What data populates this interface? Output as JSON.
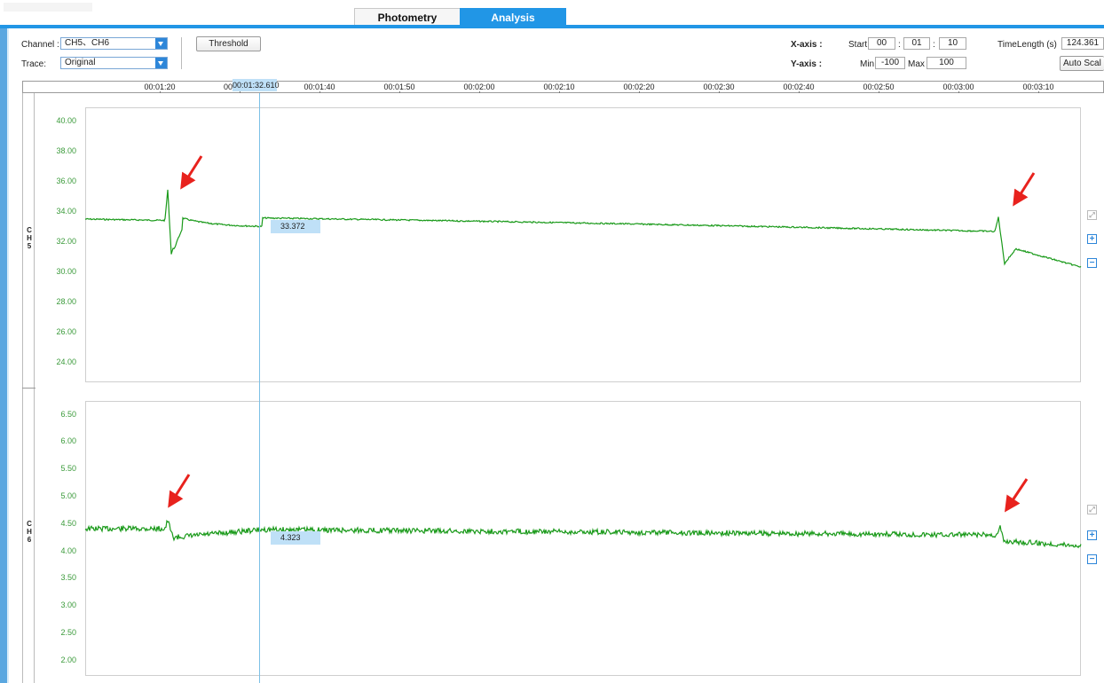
{
  "tabs": [
    {
      "label": "Photometry",
      "active": false
    },
    {
      "label": "Analysis",
      "active": true
    }
  ],
  "toolbar": {
    "channel_label": "Channel :",
    "channel_value": "CH5、CH6",
    "trace_label": "Trace:",
    "trace_value": "Original",
    "threshold_button": "Threshold",
    "xaxis_label": "X-axis :",
    "yaxis_label": "Y-axis :",
    "start_label": "Start",
    "start_h": "00",
    "start_m": "01",
    "start_s": "10",
    "colon": ":",
    "min_label": "Min",
    "min_value": "-100",
    "max_label": "Max",
    "max_value": "100",
    "timelength_label": "TimeLength (s)",
    "timelength_value": "124.361",
    "autoscale_button": "Auto Scal"
  },
  "time_axis": {
    "ticks": [
      "00:01:20",
      "00",
      "00:01:40",
      "00:01:50",
      "00:02:00",
      "00:02:10",
      "00:02:20",
      "00:02:30",
      "00:02:40",
      "00:02:50",
      "00:03:00",
      "00:03:10"
    ],
    "cursor_time": "00:01:32.610"
  },
  "channels": [
    {
      "label": [
        "C",
        "H",
        "5"
      ],
      "y_ticks": [
        "40.00",
        "38.00",
        "36.00",
        "34.00",
        "32.00",
        "30.00",
        "28.00",
        "26.00",
        "24.00"
      ],
      "cursor_value": "33.372"
    },
    {
      "label": [
        "C",
        "H",
        "6"
      ],
      "y_ticks": [
        "6.50",
        "6.00",
        "5.50",
        "5.00",
        "4.50",
        "4.00",
        "3.50",
        "3.00",
        "2.50",
        "2.00"
      ],
      "cursor_value": "4.323"
    }
  ],
  "side_buttons": {
    "fit": "⤢",
    "zoom_in": "+",
    "zoom_out": "−"
  },
  "colors": {
    "accent": "#2196e6",
    "trace": "#1a9a1a",
    "arrow": "#e8221d",
    "y_label": "#3a9a3a"
  }
}
